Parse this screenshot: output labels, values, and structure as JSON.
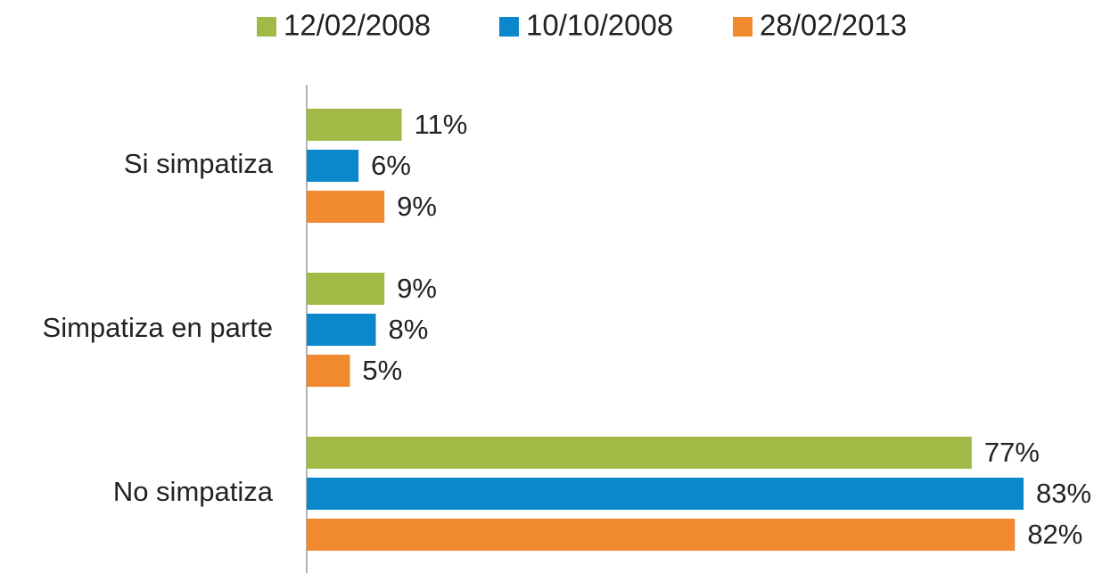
{
  "chart_data": {
    "type": "hbar",
    "categories": [
      "Si simpatiza",
      "Simpatiza en parte",
      "No simpatiza"
    ],
    "series": [
      {
        "name": "12/02/2008",
        "color": "#a1b945",
        "values": [
          11,
          9,
          77
        ],
        "value_labels": [
          "11%",
          "9%",
          "77%"
        ]
      },
      {
        "name": "10/10/2008",
        "color": "#0b88cc",
        "values": [
          6,
          8,
          83
        ],
        "value_labels": [
          "6%",
          "8%",
          "83%"
        ]
      },
      {
        "name": "28/02/2013",
        "color": "#f18a2e",
        "values": [
          9,
          5,
          82
        ],
        "value_labels": [
          "9%",
          "5%",
          "82%"
        ]
      }
    ],
    "legend": "top"
  }
}
